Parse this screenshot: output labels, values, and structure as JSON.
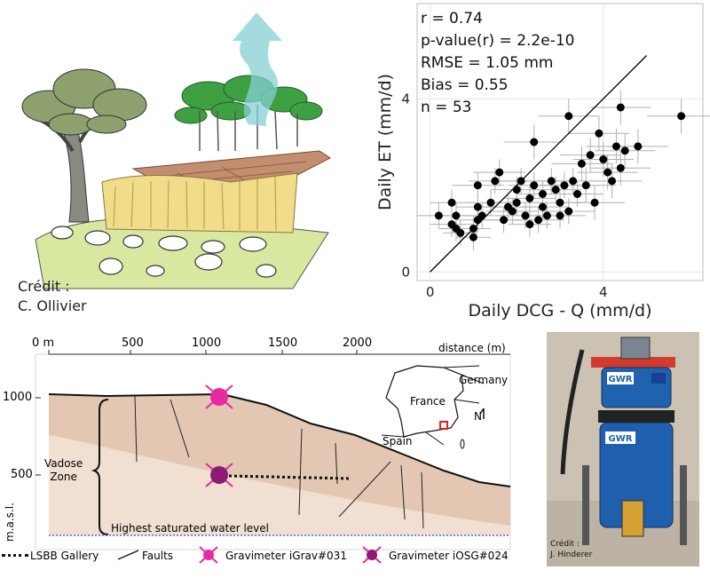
{
  "illustration": {
    "credit_label": "Crédit :",
    "credit_name": "C. Ollivier"
  },
  "scatter": {
    "chart_data": {
      "type": "scatter",
      "xlabel": "Daily DCG - Q (mm/d)",
      "ylabel": "Daily ET (mm/d)",
      "xlim": [
        -0.3,
        6.3
      ],
      "ylim": [
        -0.2,
        6.2
      ],
      "xticks": [
        0,
        4
      ],
      "yticks": [
        0,
        4
      ],
      "grid": true,
      "stats": [
        "r = 0.74",
        "p-value(r) = 2.2e-10",
        "RMSE = 1.05 mm",
        "Bias = 0.55",
        "n = 53"
      ],
      "regression_line": [
        [
          0,
          0
        ],
        [
          5,
          5
        ]
      ],
      "points": [
        {
          "x": 0.2,
          "y": 1.3,
          "ex": 0.5,
          "ey": 0.3
        },
        {
          "x": 0.5,
          "y": 1.1,
          "ex": 0.5,
          "ey": 0.3
        },
        {
          "x": 0.6,
          "y": 1.0,
          "ex": 0.4,
          "ey": 0.3
        },
        {
          "x": 0.6,
          "y": 1.3,
          "ex": 0.4,
          "ey": 0.3
        },
        {
          "x": 0.5,
          "y": 1.6,
          "ex": 0.5,
          "ey": 0.3
        },
        {
          "x": 0.7,
          "y": 0.9,
          "ex": 0.4,
          "ey": 0.3
        },
        {
          "x": 1.0,
          "y": 0.8,
          "ex": 0.4,
          "ey": 0.3
        },
        {
          "x": 1.0,
          "y": 1.0,
          "ex": 0.4,
          "ey": 0.3
        },
        {
          "x": 1.1,
          "y": 1.2,
          "ex": 0.5,
          "ey": 0.3
        },
        {
          "x": 1.2,
          "y": 1.3,
          "ex": 0.5,
          "ey": 0.3
        },
        {
          "x": 1.1,
          "y": 1.5,
          "ex": 0.5,
          "ey": 0.3
        },
        {
          "x": 1.1,
          "y": 2.0,
          "ex": 0.6,
          "ey": 0.3
        },
        {
          "x": 1.4,
          "y": 1.6,
          "ex": 0.5,
          "ey": 0.3
        },
        {
          "x": 1.5,
          "y": 2.1,
          "ex": 0.6,
          "ey": 0.3
        },
        {
          "x": 1.6,
          "y": 2.3,
          "ex": 0.6,
          "ey": 0.3
        },
        {
          "x": 1.7,
          "y": 1.2,
          "ex": 0.5,
          "ey": 0.3
        },
        {
          "x": 1.8,
          "y": 1.5,
          "ex": 0.6,
          "ey": 0.3
        },
        {
          "x": 1.9,
          "y": 1.4,
          "ex": 0.6,
          "ey": 0.3
        },
        {
          "x": 2.0,
          "y": 1.6,
          "ex": 0.6,
          "ey": 0.3
        },
        {
          "x": 2.0,
          "y": 1.9,
          "ex": 0.6,
          "ey": 0.3
        },
        {
          "x": 2.1,
          "y": 2.1,
          "ex": 0.6,
          "ey": 0.3
        },
        {
          "x": 2.2,
          "y": 1.3,
          "ex": 0.6,
          "ey": 0.3
        },
        {
          "x": 2.3,
          "y": 1.1,
          "ex": 0.5,
          "ey": 0.3
        },
        {
          "x": 2.3,
          "y": 1.7,
          "ex": 0.6,
          "ey": 0.3
        },
        {
          "x": 2.4,
          "y": 2.0,
          "ex": 0.6,
          "ey": 0.3
        },
        {
          "x": 2.4,
          "y": 3.0,
          "ex": 0.7,
          "ey": 0.4
        },
        {
          "x": 2.5,
          "y": 1.2,
          "ex": 0.6,
          "ey": 0.3
        },
        {
          "x": 2.6,
          "y": 1.8,
          "ex": 0.6,
          "ey": 0.3
        },
        {
          "x": 2.6,
          "y": 1.5,
          "ex": 0.6,
          "ey": 0.3
        },
        {
          "x": 2.7,
          "y": 1.3,
          "ex": 0.6,
          "ey": 0.3
        },
        {
          "x": 2.8,
          "y": 2.1,
          "ex": 0.6,
          "ey": 0.3
        },
        {
          "x": 2.9,
          "y": 1.9,
          "ex": 0.6,
          "ey": 0.3
        },
        {
          "x": 3.0,
          "y": 1.6,
          "ex": 0.6,
          "ey": 0.3
        },
        {
          "x": 3.1,
          "y": 2.0,
          "ex": 0.6,
          "ey": 0.3
        },
        {
          "x": 3.0,
          "y": 1.3,
          "ex": 0.6,
          "ey": 0.3
        },
        {
          "x": 3.2,
          "y": 1.4,
          "ex": 0.6,
          "ey": 0.3
        },
        {
          "x": 3.3,
          "y": 2.1,
          "ex": 0.6,
          "ey": 0.3
        },
        {
          "x": 3.4,
          "y": 1.8,
          "ex": 0.6,
          "ey": 0.3
        },
        {
          "x": 3.2,
          "y": 3.6,
          "ex": 0.7,
          "ey": 0.4
        },
        {
          "x": 3.5,
          "y": 2.5,
          "ex": 0.7,
          "ey": 0.4
        },
        {
          "x": 3.6,
          "y": 2.0,
          "ex": 0.7,
          "ey": 0.4
        },
        {
          "x": 3.7,
          "y": 2.7,
          "ex": 0.7,
          "ey": 0.4
        },
        {
          "x": 3.8,
          "y": 1.6,
          "ex": 0.7,
          "ey": 0.4
        },
        {
          "x": 3.9,
          "y": 3.2,
          "ex": 0.7,
          "ey": 0.4
        },
        {
          "x": 4.0,
          "y": 2.6,
          "ex": 0.7,
          "ey": 0.4
        },
        {
          "x": 4.1,
          "y": 2.3,
          "ex": 0.7,
          "ey": 0.4
        },
        {
          "x": 4.2,
          "y": 2.1,
          "ex": 0.7,
          "ey": 0.4
        },
        {
          "x": 4.3,
          "y": 2.9,
          "ex": 0.7,
          "ey": 0.4
        },
        {
          "x": 4.4,
          "y": 2.4,
          "ex": 0.7,
          "ey": 0.4
        },
        {
          "x": 4.4,
          "y": 3.8,
          "ex": 0.7,
          "ey": 0.4
        },
        {
          "x": 4.5,
          "y": 2.8,
          "ex": 0.7,
          "ey": 0.4
        },
        {
          "x": 4.8,
          "y": 2.9,
          "ex": 0.7,
          "ey": 0.4
        },
        {
          "x": 5.8,
          "y": 3.6,
          "ex": 0.8,
          "ey": 0.4
        }
      ]
    }
  },
  "section": {
    "top_ticks": [
      "0 m",
      "500",
      "1000",
      "1500",
      "2000"
    ],
    "distance_label": "distance (m)",
    "y_ticks": [
      "1000",
      "500"
    ],
    "y_axis_label": "m.a.s.l.",
    "vadose_label": [
      "Vadose",
      "Zone"
    ],
    "water_level_label": "Highest saturated water level",
    "map": {
      "germany": "Germany",
      "france": "France",
      "spain": "Spain",
      "north": "N"
    },
    "legend": {
      "gallery": "LSBB Gallery",
      "faults": "Faults",
      "igrav": "Gravimeter iGrav#031",
      "iosg": "Gravimeter iOSG#024"
    },
    "colors": {
      "igrav": "#e62aa4",
      "iosg": "#8e1a75",
      "rock_dark": "#e3c7b2",
      "rock_light": "#f1dfd1",
      "water": "#4a67e0"
    }
  },
  "photo": {
    "brand": "GWR",
    "credit_label": "Crédit :",
    "credit_name": "J. Hinderer"
  }
}
